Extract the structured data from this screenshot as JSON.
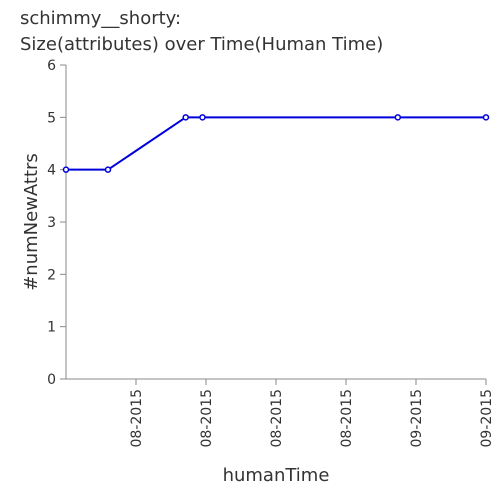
{
  "chart_data": {
    "type": "line",
    "title": "schimmy__shorty:",
    "subtitle": "Size(attributes) over Time(Human Time)",
    "xlabel": "humanTime",
    "ylabel": "#numNewAttrs",
    "x_ticks": [
      "08-2015",
      "08-2015",
      "08-2015",
      "08-2015",
      "09-2015",
      "09-2015"
    ],
    "ylim": [
      0,
      6
    ],
    "y_ticks": [
      0,
      1,
      2,
      3,
      4,
      5,
      6
    ],
    "grid": false,
    "series": [
      {
        "x": [
          0.0,
          0.1,
          0.285,
          0.325,
          0.79,
          1.0
        ],
        "values": [
          4,
          4,
          5,
          5,
          5,
          5
        ]
      }
    ],
    "colors": {
      "line": "#0000dd",
      "axis": "#888888",
      "text": "#333333"
    }
  }
}
